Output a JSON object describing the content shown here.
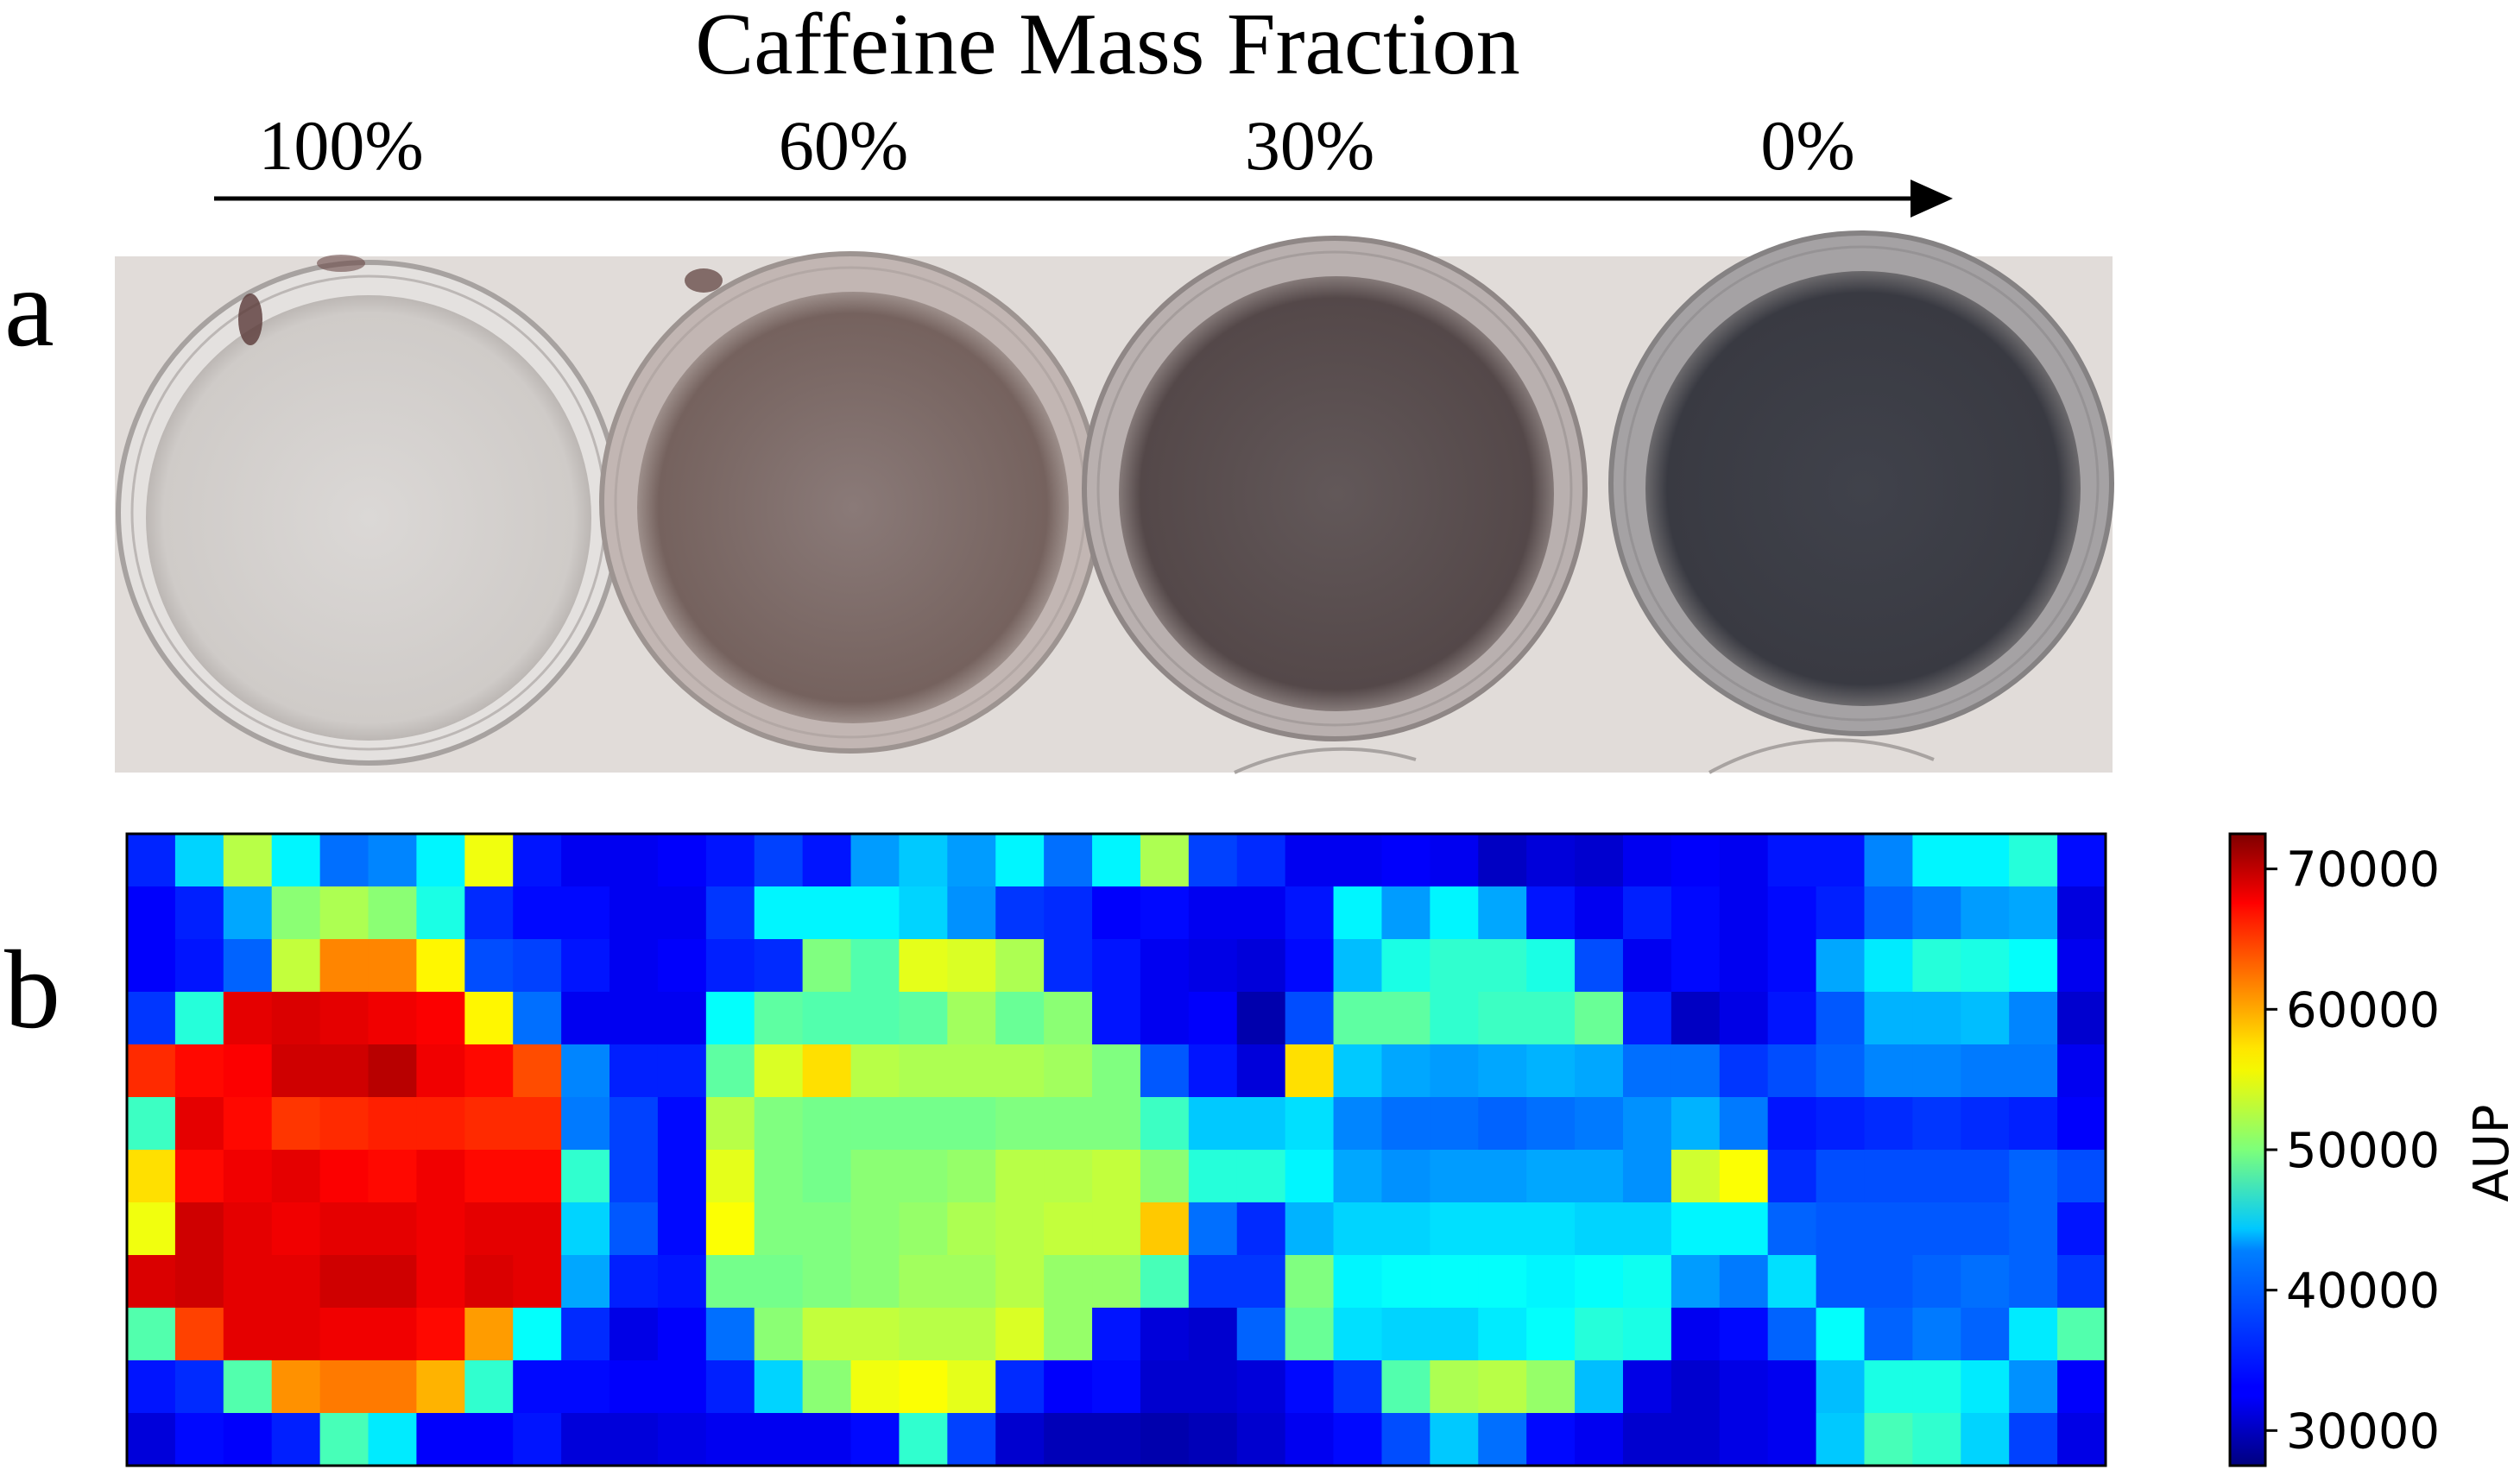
{
  "header": {
    "title": "Caffeine Mass Fraction",
    "fractions": [
      "100%",
      "60%",
      "30%",
      "0%"
    ]
  },
  "panels": {
    "a": "a",
    "b": "b"
  },
  "photo": {
    "dish_tints": [
      "#d7d4d2",
      "#7f6c69",
      "#5a4e50",
      "#3b3c44"
    ]
  },
  "chart_data": {
    "type": "heatmap",
    "colormap": "jet",
    "rows": 12,
    "cols": 41,
    "vmin": 27500,
    "vmax": 72500,
    "colorbar": {
      "label": "AUP",
      "ticks": [
        30000,
        40000,
        50000,
        60000,
        70000
      ],
      "tick_labels": [
        "30000",
        "40000",
        "50000",
        "60000",
        "70000"
      ]
    },
    "z": [
      [
        34700,
        42500,
        52500,
        44000,
        38000,
        39000,
        44000,
        55000,
        34000,
        32500,
        32500,
        33000,
        34000,
        36000,
        34000,
        40000,
        42000,
        40000,
        44000,
        38000,
        44000,
        52000,
        36000,
        35000,
        32500,
        32500,
        33000,
        32500,
        30500,
        31500,
        31000,
        32500,
        33000,
        32500,
        34000,
        34000,
        39000,
        44000,
        44000,
        46000,
        33600
      ],
      [
        33000,
        34500,
        40500,
        50500,
        52000,
        50500,
        45500,
        35000,
        33500,
        33500,
        32500,
        32500,
        35500,
        44000,
        44000,
        44000,
        42500,
        39500,
        35500,
        35000,
        33000,
        33500,
        32500,
        32500,
        34000,
        44000,
        40000,
        44000,
        40500,
        34000,
        32500,
        34500,
        33500,
        32500,
        33500,
        34500,
        37500,
        38500,
        40000,
        40500,
        31700
      ],
      [
        33000,
        34000,
        37500,
        53000,
        61000,
        61000,
        56000,
        36500,
        36000,
        34000,
        32500,
        33000,
        34500,
        35000,
        50000,
        48000,
        54500,
        54000,
        52000,
        35000,
        34000,
        32500,
        32000,
        31500,
        33500,
        41500,
        45500,
        46500,
        46500,
        45500,
        36500,
        32500,
        33500,
        32500,
        33500,
        40500,
        43500,
        46000,
        45500,
        44500,
        32400
      ],
      [
        35500,
        46000,
        68000,
        68500,
        68000,
        67500,
        67000,
        56000,
        38000,
        32500,
        32500,
        32500,
        44500,
        48500,
        48000,
        48000,
        48500,
        51500,
        49000,
        50500,
        34000,
        32500,
        33000,
        29500,
        36500,
        48500,
        48500,
        46500,
        47000,
        47000,
        49000,
        34500,
        30500,
        32000,
        34000,
        37000,
        41000,
        41000,
        41500,
        39000,
        31000
      ],
      [
        65000,
        66500,
        67000,
        69000,
        69000,
        70000,
        67500,
        66500,
        63500,
        39000,
        34500,
        34500,
        48500,
        54000,
        57000,
        52500,
        52000,
        52000,
        52000,
        51500,
        50000,
        37000,
        34000,
        31500,
        57000,
        42000,
        40500,
        40000,
        40500,
        41000,
        40500,
        38000,
        38000,
        35500,
        36500,
        37500,
        39000,
        39000,
        38500,
        38500,
        32500
      ],
      [
        47000,
        68000,
        66500,
        64500,
        65000,
        65500,
        65500,
        65000,
        65000,
        38500,
        36000,
        33500,
        52500,
        50000,
        49500,
        49500,
        49500,
        49500,
        50000,
        50000,
        50000,
        47000,
        42000,
        42000,
        43000,
        39000,
        38000,
        38000,
        37500,
        38000,
        38500,
        39500,
        41000,
        38500,
        34000,
        34500,
        35000,
        35500,
        35000,
        34500,
        33000
      ],
      [
        57000,
        66500,
        67500,
        68000,
        67000,
        66500,
        67500,
        66500,
        66500,
        46500,
        36000,
        33500,
        54500,
        50000,
        49500,
        50500,
        50500,
        51000,
        52500,
        52500,
        53000,
        50500,
        46000,
        46000,
        44000,
        40500,
        39500,
        40000,
        40000,
        40500,
        40500,
        39500,
        53500,
        55500,
        35000,
        36500,
        36500,
        36500,
        36500,
        37500,
        36500
      ],
      [
        55000,
        69000,
        68000,
        67500,
        68000,
        68000,
        67500,
        68000,
        68000,
        42500,
        37000,
        33500,
        55500,
        50000,
        50000,
        50500,
        51000,
        52000,
        52500,
        53000,
        53000,
        58000,
        38000,
        35000,
        41000,
        42500,
        42500,
        43000,
        43000,
        43000,
        42500,
        42500,
        44000,
        44000,
        37500,
        37000,
        37000,
        37000,
        37000,
        37500,
        34000
      ],
      [
        68500,
        69000,
        68000,
        68000,
        69000,
        69000,
        67500,
        68500,
        68000,
        40500,
        34500,
        34000,
        49500,
        49500,
        50000,
        50500,
        51500,
        51500,
        52500,
        51000,
        51000,
        47500,
        35500,
        35500,
        50000,
        44000,
        44500,
        44500,
        44500,
        44000,
        44500,
        45000,
        40000,
        38500,
        43000,
        37000,
        37000,
        37500,
        38000,
        37500,
        35500
      ],
      [
        48000,
        64000,
        68000,
        68000,
        67500,
        67500,
        66500,
        60000,
        44500,
        35000,
        32000,
        33000,
        38000,
        50500,
        53000,
        53000,
        52500,
        52500,
        54000,
        51000,
        34000,
        31500,
        31000,
        37500,
        49000,
        43000,
        42500,
        42500,
        43500,
        44500,
        46000,
        45500,
        32500,
        33500,
        37500,
        44500,
        37500,
        38500,
        37500,
        43500,
        48000
      ],
      [
        34000,
        35000,
        48000,
        60500,
        61500,
        61500,
        59000,
        46500,
        33500,
        33500,
        33000,
        33000,
        34500,
        42500,
        50500,
        55000,
        55500,
        54500,
        35000,
        33000,
        33500,
        31000,
        31000,
        31500,
        33500,
        35500,
        48000,
        52000,
        52500,
        51000,
        41500,
        32000,
        31000,
        32000,
        32500,
        41500,
        45500,
        45500,
        43500,
        39500,
        33000
      ],
      [
        31500,
        33500,
        33000,
        34500,
        47500,
        43500,
        33000,
        33000,
        34000,
        31500,
        31500,
        32000,
        32500,
        32500,
        32500,
        33500,
        46500,
        36000,
        31000,
        30000,
        30000,
        29500,
        30000,
        31000,
        32500,
        33500,
        36500,
        42000,
        38000,
        33500,
        32500,
        31000,
        31000,
        32000,
        32500,
        42000,
        47500,
        46500,
        42500,
        36000,
        32000
      ]
    ]
  }
}
